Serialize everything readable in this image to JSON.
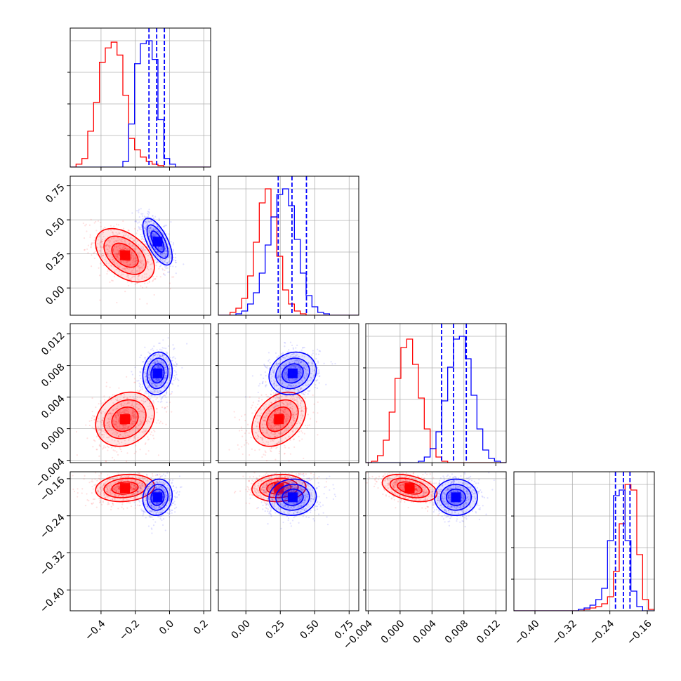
{
  "chart_data": {
    "type": "corner",
    "title": "",
    "parameters": [
      "",
      "",
      "",
      ""
    ],
    "colors": {
      "red": "#ff0000",
      "blue": "#0000ff"
    },
    "series": [
      {
        "name": "",
        "color": "#ff0000",
        "means": [
          -0.26,
          0.24,
          0.0012,
          -0.18
        ],
        "stds": [
          0.07,
          0.08,
          0.0014,
          0.012
        ],
        "correlations": [
          [
            0,
            1,
            -0.45
          ],
          [
            0,
            2,
            0.2
          ],
          [
            0,
            3,
            0.15
          ],
          [
            1,
            2,
            0.35
          ],
          [
            1,
            3,
            0.1
          ],
          [
            2,
            3,
            -0.4
          ]
        ]
      },
      {
        "name": "",
        "color": "#0000ff",
        "means": [
          -0.07,
          0.34,
          0.007,
          -0.2
        ],
        "stds": [
          0.035,
          0.07,
          0.0011,
          0.016
        ],
        "correlations": [
          [
            0,
            1,
            -0.65
          ],
          [
            0,
            2,
            0.1
          ],
          [
            0,
            3,
            0.1
          ],
          [
            1,
            2,
            0.15
          ],
          [
            1,
            3,
            0.05
          ],
          [
            2,
            3,
            0.0
          ]
        ]
      }
    ],
    "quantile_lines": {
      "color": "#0000ff",
      "values": [
        [
          -0.12,
          -0.075,
          -0.03
        ],
        [
          0.235,
          0.335,
          0.44
        ],
        [
          0.0052,
          0.0067,
          0.0083
        ],
        [
          -0.228,
          -0.211,
          -0.197
        ]
      ]
    },
    "axes": [
      {
        "range": [
          -0.58,
          0.24
        ],
        "ticks": [
          -0.4,
          -0.2,
          0.0,
          0.2
        ],
        "tick_labels": [
          "−0.4",
          "−0.2",
          "0.0",
          "0.2"
        ]
      },
      {
        "range": [
          -0.2,
          0.82
        ],
        "ticks": [
          0.0,
          0.25,
          0.5,
          0.75
        ],
        "tick_labels": [
          "0.00",
          "0.25",
          "0.50",
          "0.75"
        ]
      },
      {
        "range": [
          -0.0043,
          0.0133
        ],
        "ticks": [
          -0.004,
          0.0,
          0.004,
          0.008,
          0.012
        ],
        "tick_labels": [
          "−0.004",
          "0.000",
          "0.004",
          "0.008",
          "0.012"
        ]
      },
      {
        "range": [
          -0.445,
          -0.145
        ],
        "ticks": [
          -0.4,
          -0.32,
          -0.24,
          -0.16
        ],
        "tick_labels": [
          "−0.40",
          "−0.32",
          "−0.24",
          "−0.16"
        ]
      }
    ],
    "histograms": [
      {
        "bins": [
          -0.58,
          0.24,
          24
        ],
        "counts": [
          {
            "name": "red",
            "values": [
              0,
              2,
              6,
              25,
              45,
              73,
              83,
              87,
              78,
              50,
              20,
              12,
              7,
              4,
              2,
              1,
              0,
              0,
              0,
              0,
              0,
              0,
              0,
              0
            ]
          },
          {
            "name": "blue",
            "values": [
              0,
              0,
              0,
              0,
              0,
              0,
              0,
              0,
              0,
              4,
              30,
              72,
              86,
              88,
              75,
              33,
              6,
              2,
              0,
              0,
              0,
              0,
              0,
              0
            ]
          }
        ]
      },
      {
        "bins": [
          -0.2,
          0.82,
          24
        ],
        "counts": [
          {
            "name": "red",
            "values": [
              0,
              0,
              2,
              5,
              12,
              28,
              52,
              80,
              90,
              70,
              42,
              18,
              8,
              3,
              1,
              0,
              0,
              0,
              0,
              0,
              0,
              0,
              0,
              0
            ]
          },
          {
            "name": "blue",
            "values": [
              0,
              0,
              0,
              1,
              3,
              8,
              16,
              30,
              50,
              70,
              86,
              90,
              78,
              54,
              30,
              14,
              6,
              2,
              1,
              0,
              0,
              0,
              0,
              0
            ]
          }
        ]
      },
      {
        "bins": [
          -0.0043,
          0.0133,
          24
        ],
        "counts": [
          {
            "name": "red",
            "values": [
              0,
              1,
              5,
              16,
              36,
              60,
              82,
              88,
              70,
              46,
              24,
              10,
              4,
              1,
              0,
              0,
              0,
              0,
              0,
              0,
              0,
              0,
              0,
              0
            ]
          },
          {
            "name": "blue",
            "values": [
              0,
              0,
              0,
              0,
              0,
              0,
              0,
              0,
              0,
              1,
              4,
              10,
              22,
              44,
              68,
              88,
              90,
              74,
              48,
              24,
              9,
              3,
              1,
              0
            ]
          }
        ]
      },
      {
        "bins": [
          -0.445,
          -0.145,
          24
        ],
        "counts": [
          {
            "name": "red",
            "values": [
              0,
              0,
              0,
              0,
              0,
              0,
              0,
              0,
              0,
              0,
              0,
              0,
              1,
              2,
              3,
              5,
              10,
              28,
              62,
              90,
              86,
              40,
              8,
              1
            ]
          },
          {
            "name": "blue",
            "values": [
              0,
              0,
              0,
              0,
              0,
              0,
              0,
              0,
              0,
              0,
              0,
              1,
              2,
              4,
              8,
              16,
              50,
              82,
              86,
              50,
              14,
              3,
              0,
              0
            ]
          }
        ]
      }
    ],
    "grid": true,
    "legend": "none"
  }
}
